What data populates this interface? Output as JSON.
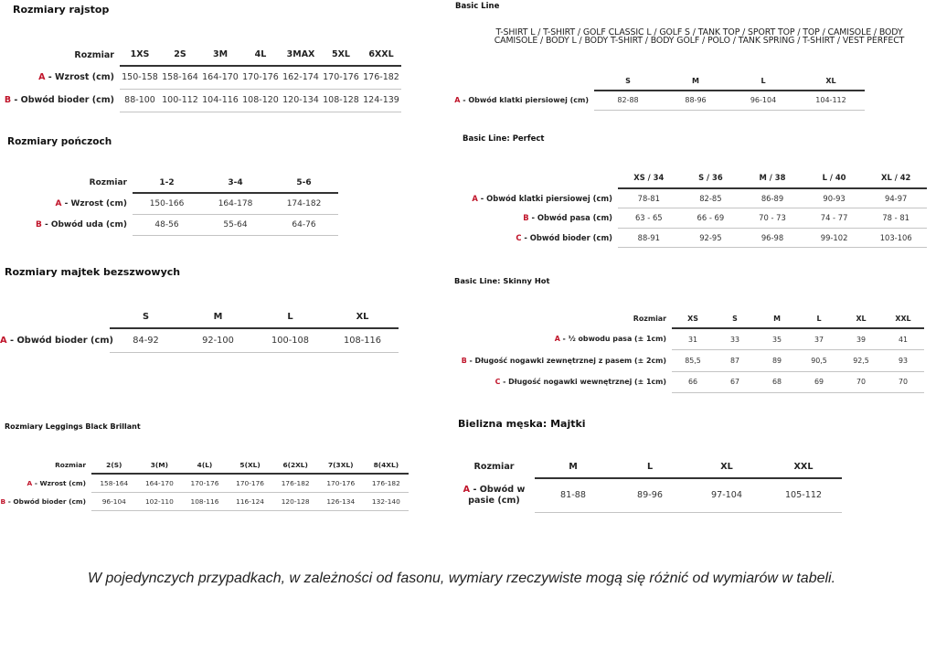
{
  "accent_color": "#c0142a",
  "tables": [
    {
      "id": "t-rajstop",
      "title": "Rozmiary rajstop",
      "header_label": "Rozmiar",
      "columns": [
        "1XS",
        "2S",
        "3M",
        "4L",
        "3MAX",
        "5XL",
        "6XXL"
      ],
      "rows": [
        {
          "letter": "A",
          "label": " - Wzrost (cm)",
          "values": [
            "150-158",
            "158-164",
            "164-170",
            "170-176",
            "162-174",
            "170-176",
            "176-182"
          ]
        },
        {
          "letter": "B",
          "label": " - Obwód bioder (cm)",
          "values": [
            "88-100",
            "100-112",
            "104-116",
            "108-120",
            "120-134",
            "108-128",
            "124-139"
          ]
        }
      ]
    },
    {
      "id": "t-ponczoch",
      "title": "Rozmiary pończoch",
      "header_label": "Rozmiar",
      "columns": [
        "1-2",
        "3-4",
        "5-6"
      ],
      "rows": [
        {
          "letter": "A",
          "label": " - Wzrost (cm)",
          "values": [
            "150-166",
            "164-178",
            "174-182"
          ]
        },
        {
          "letter": "B",
          "label": " - Obwód uda (cm)",
          "values": [
            "48-56",
            "55-64",
            "64-76"
          ]
        }
      ]
    },
    {
      "id": "t-majtek",
      "title": "Rozmiary majtek bezszwowych",
      "header_label": "",
      "columns": [
        "S",
        "M",
        "L",
        "XL"
      ],
      "rows": [
        {
          "letter": "A",
          "label": " - Obwód bioder (cm)",
          "values": [
            "84-92",
            "92-100",
            "100-108",
            "108-116"
          ]
        }
      ]
    },
    {
      "id": "t-leggings",
      "title": "Rozmiary Leggings Black Brillant",
      "header_label": "Rozmiar",
      "columns": [
        "2(S)",
        "3(M)",
        "4(L)",
        "5(XL)",
        "6(2XL)",
        "7(3XL)",
        "8(4XL)"
      ],
      "rows": [
        {
          "letter": "A",
          "label": " - Wzrost (cm)",
          "values": [
            "158-164",
            "164-170",
            "170-176",
            "170-176",
            "176-182",
            "170-176",
            "176-182"
          ]
        },
        {
          "letter": "B",
          "label": " - Obwód bioder (cm)",
          "values": [
            "96-104",
            "102-110",
            "108-116",
            "116-124",
            "120-128",
            "126-134",
            "132-140"
          ]
        }
      ]
    },
    {
      "id": "t-basic",
      "title": "Basic Line",
      "header_label": "",
      "columns": [
        "S",
        "M",
        "L",
        "XL"
      ],
      "rows": [
        {
          "letter": "A",
          "label": " - Obwód klatki piersiowej (cm)",
          "values": [
            "82-88",
            "88-96",
            "96-104",
            "104-112"
          ]
        }
      ]
    },
    {
      "id": "t-perfect",
      "title": "Basic Line: Perfect",
      "header_label": "",
      "columns": [
        "XS / 34",
        "S / 36",
        "M / 38",
        "L / 40",
        "XL / 42"
      ],
      "rows": [
        {
          "letter": "A",
          "label": " - Obwód klatki piersiowej (cm)",
          "values": [
            "78-81",
            "82-85",
            "86-89",
            "90-93",
            "94-97"
          ]
        },
        {
          "letter": "B",
          "label": " - Obwód pasa (cm)",
          "values": [
            "63 - 65",
            "66 - 69",
            "70 - 73",
            "74 - 77",
            "78 - 81"
          ]
        },
        {
          "letter": "C",
          "label": " - Obwód bioder (cm)",
          "values": [
            "88-91",
            "92-95",
            "96-98",
            "99-102",
            "103-106"
          ]
        }
      ]
    },
    {
      "id": "t-skinny",
      "title": "Basic Line: Skinny Hot",
      "header_label": "Rozmiar",
      "columns": [
        "XS",
        "S",
        "M",
        "L",
        "XL",
        "XXL"
      ],
      "rows": [
        {
          "letter": "A",
          "label": " - ½ obwodu pasa (± 1cm)",
          "values": [
            "31",
            "33",
            "35",
            "37",
            "39",
            "41"
          ]
        },
        {
          "letter": "B",
          "label": " - Długość nogawki zewnętrznej z pasem (± 2cm)",
          "values": [
            "85,5",
            "87",
            "89",
            "90,5",
            "92,5",
            "93"
          ]
        },
        {
          "letter": "C",
          "label": " - Długość nogawki wewnętrznej (± 1cm)",
          "values": [
            "66",
            "67",
            "68",
            "69",
            "70",
            "70"
          ]
        }
      ]
    },
    {
      "id": "t-majtki",
      "title": "Bielizna męska: Majtki",
      "header_label": "Rozmiar",
      "columns": [
        "M",
        "L",
        "XL",
        "XXL"
      ],
      "rows": [
        {
          "letter": "A",
          "label": " - Obwód w pasie (cm)",
          "values": [
            "81-88",
            "89-96",
            "97-104",
            "105-112"
          ]
        }
      ]
    }
  ],
  "basic_line_products": [
    "T-SHIRT L / T-SHIRT / GOLF CLASSIC L / GOLF S / TANK TOP / SPORT TOP / TOP / CAMISOLE / BODY",
    "CAMISOLE / BODY L / BODY T-SHIRT / BODY GOLF / POLO / TANK SPRING / T-SHIRT / VEST PERFECT"
  ],
  "footer_note": "W pojedynczych przypadkach, w zależności od fasonu, wymiary rzeczywiste mogą się różnić od wymiarów w tabeli."
}
